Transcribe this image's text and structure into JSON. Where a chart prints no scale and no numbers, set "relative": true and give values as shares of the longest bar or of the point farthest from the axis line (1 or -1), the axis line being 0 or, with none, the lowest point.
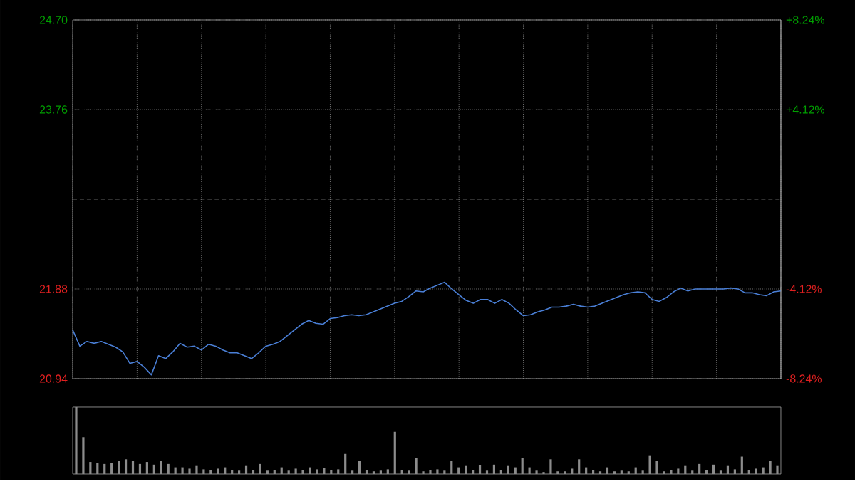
{
  "chart_data": [
    {
      "type": "line",
      "categories": [
        null,
        null,
        null,
        null,
        null,
        null,
        null,
        null,
        null,
        null,
        null,
        null,
        null,
        null,
        null,
        null,
        null,
        null,
        null,
        null,
        null,
        null,
        null,
        null,
        null,
        null,
        null,
        null,
        null,
        null,
        null,
        null,
        null,
        null,
        null,
        null,
        null,
        null,
        null,
        null,
        null,
        null,
        null,
        null,
        null,
        null,
        null,
        null,
        null,
        null,
        null,
        null,
        null,
        null,
        null,
        null,
        null,
        null,
        null,
        null,
        null,
        null,
        null,
        null,
        null,
        null,
        null,
        null,
        null,
        null,
        null,
        null,
        null,
        null,
        null,
        null,
        null,
        null,
        null,
        null,
        null,
        null,
        null,
        null,
        null,
        null,
        null,
        null,
        null,
        null,
        null,
        null,
        null,
        null,
        null,
        null,
        null,
        null,
        null,
        null
      ],
      "series": [
        {
          "color": "#4a7fd6",
          "values": [
            21.45,
            21.28,
            21.33,
            21.31,
            21.33,
            21.3,
            21.27,
            21.22,
            21.1,
            21.12,
            21.06,
            20.98,
            21.18,
            21.15,
            21.22,
            21.31,
            21.27,
            21.28,
            21.24,
            21.3,
            21.28,
            21.24,
            21.21,
            21.21,
            21.18,
            21.15,
            21.21,
            21.28,
            21.3,
            21.33,
            21.39,
            21.45,
            21.51,
            21.55,
            21.52,
            21.51,
            21.57,
            21.58,
            21.6,
            21.61,
            21.6,
            21.61,
            21.64,
            21.67,
            21.7,
            21.73,
            21.75,
            21.8,
            21.86,
            21.85,
            21.89,
            21.92,
            21.95,
            21.88,
            21.82,
            21.76,
            21.73,
            21.77,
            21.77,
            21.73,
            21.77,
            21.73,
            21.66,
            21.6,
            21.61,
            21.64,
            21.66,
            21.69,
            21.69,
            21.7,
            21.72,
            21.7,
            21.69,
            21.7,
            21.73,
            21.76,
            21.79,
            21.82,
            21.84,
            21.85,
            21.84,
            21.77,
            21.75,
            21.79,
            21.85,
            21.89,
            21.86,
            21.88,
            21.88,
            21.88,
            21.88,
            21.88,
            21.89,
            21.88,
            21.84,
            21.84,
            21.82,
            21.81,
            21.85,
            21.86
          ]
        }
      ],
      "ylim": [
        20.94,
        24.7
      ],
      "yticks": [
        20.94,
        21.88,
        23.76,
        {
          "value": 24.7,
          "label": "24.70"
        }
      ],
      "y2lim": [
        -8.24,
        8.24
      ],
      "y2ticks": [
        {
          "value": -8.24,
          "label": "-8.24%"
        },
        {
          "value": -4.12,
          "label": "-4.12%"
        },
        {
          "value": 4.12,
          "label": "+4.12%"
        },
        {
          "value": 8.24,
          "label": "+8.24%"
        }
      ],
      "ref_lines": [
        {
          "axis": "y",
          "value": 22.82,
          "color": "#808080",
          "line_style": "dashed"
        }
      ],
      "grid": true,
      "tick_labels": "y"
    },
    {
      "type": "bar",
      "relative": true,
      "tick_labels": false,
      "categories": [
        null,
        null,
        null,
        null,
        null,
        null,
        null,
        null,
        null,
        null,
        null,
        null,
        null,
        null,
        null,
        null,
        null,
        null,
        null,
        null,
        null,
        null,
        null,
        null,
        null,
        null,
        null,
        null,
        null,
        null,
        null,
        null,
        null,
        null,
        null,
        null,
        null,
        null,
        null,
        null,
        null,
        null,
        null,
        null,
        null,
        null,
        null,
        null,
        null,
        null,
        null,
        null,
        null,
        null,
        null,
        null,
        null,
        null,
        null,
        null,
        null,
        null,
        null,
        null,
        null,
        null,
        null,
        null,
        null,
        null,
        null,
        null,
        null,
        null,
        null,
        null,
        null,
        null,
        null,
        null,
        null,
        null,
        null,
        null,
        null,
        null,
        null,
        null,
        null,
        null,
        null,
        null,
        null,
        null,
        null,
        null,
        null,
        null,
        null,
        null
      ],
      "series": [
        {
          "color": "#8c8c8c",
          "values": [
            1.0,
            0.55,
            0.18,
            0.17,
            0.15,
            0.16,
            0.2,
            0.22,
            0.2,
            0.15,
            0.18,
            0.14,
            0.2,
            0.15,
            0.1,
            0.1,
            0.08,
            0.12,
            0.07,
            0.06,
            0.08,
            0.1,
            0.06,
            0.05,
            0.12,
            0.06,
            0.15,
            0.05,
            0.06,
            0.1,
            0.05,
            0.08,
            0.06,
            0.1,
            0.07,
            0.09,
            0.06,
            0.07,
            0.3,
            0.05,
            0.2,
            0.06,
            0.04,
            0.05,
            0.07,
            0.63,
            0.06,
            0.05,
            0.24,
            0.04,
            0.06,
            0.07,
            0.05,
            0.2,
            0.1,
            0.12,
            0.06,
            0.13,
            0.05,
            0.14,
            0.06,
            0.12,
            0.1,
            0.24,
            0.1,
            0.05,
            0.03,
            0.22,
            0.04,
            0.04,
            0.08,
            0.22,
            0.1,
            0.06,
            0.04,
            0.1,
            0.04,
            0.05,
            0.04,
            0.1,
            0.05,
            0.28,
            0.2,
            0.04,
            0.06,
            0.08,
            0.12,
            0.05,
            0.15,
            0.06,
            0.14,
            0.05,
            0.12,
            0.07,
            0.26,
            0.06,
            0.08,
            0.1,
            0.2,
            0.12
          ]
        }
      ]
    }
  ]
}
